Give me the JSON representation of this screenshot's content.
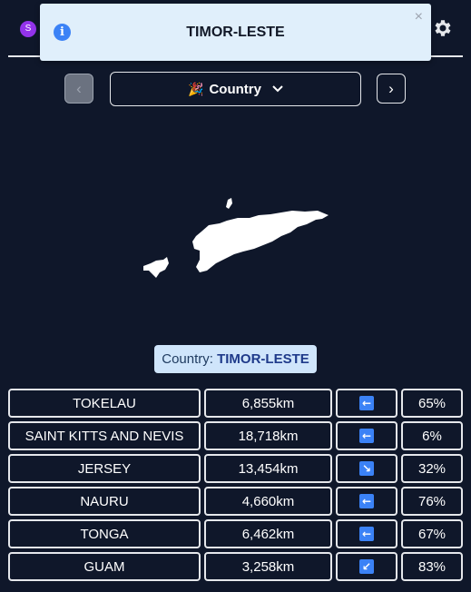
{
  "header": {
    "avatar_letter": "S"
  },
  "toast": {
    "icon": "info-icon",
    "title": "TIMOR-LESTE",
    "close": "×"
  },
  "nav": {
    "prev_symbol": "‹",
    "next_symbol": "›",
    "mode_emoji": "🎉",
    "mode_label": "Country"
  },
  "answer": {
    "prefix": "Country: ",
    "name": "TIMOR-LESTE"
  },
  "guesses": [
    {
      "name": "TOKELAU",
      "distance": "6,855km",
      "direction": "←",
      "direction_icon": "arrow-left-icon",
      "proximity": "65%"
    },
    {
      "name": "SAINT KITTS AND NEVIS",
      "distance": "18,718km",
      "direction": "←",
      "direction_icon": "arrow-left-icon",
      "proximity": "6%"
    },
    {
      "name": "JERSEY",
      "distance": "13,454km",
      "direction": "↘",
      "direction_icon": "arrow-down-right-icon",
      "proximity": "32%"
    },
    {
      "name": "NAURU",
      "distance": "4,660km",
      "direction": "←",
      "direction_icon": "arrow-left-icon",
      "proximity": "76%"
    },
    {
      "name": "TONGA",
      "distance": "6,462km",
      "direction": "←",
      "direction_icon": "arrow-left-icon",
      "proximity": "67%"
    },
    {
      "name": "GUAM",
      "distance": "3,258km",
      "direction": "↙",
      "direction_icon": "arrow-down-left-icon",
      "proximity": "83%"
    }
  ],
  "colors": {
    "background": "#0f172a",
    "accent": "#3b82f6",
    "toast_bg": "#e0effb",
    "label_bg": "#cfe5fb"
  }
}
